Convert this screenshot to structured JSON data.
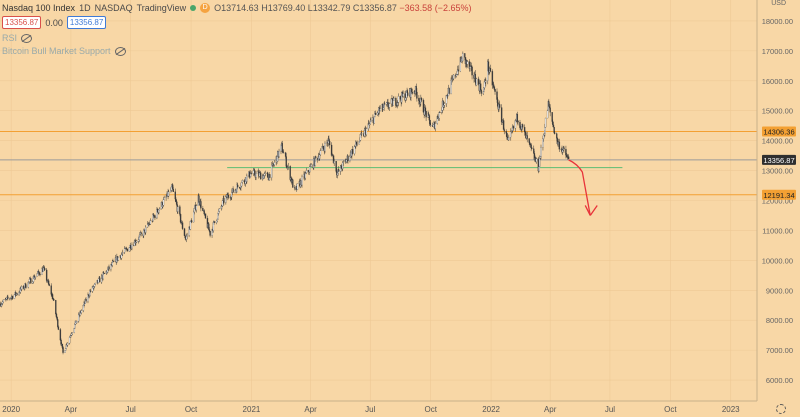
{
  "header": {
    "symbol": "Nasdaq 100 Index",
    "interval": "1D",
    "exchange": "NASDAQ",
    "source": "TradingView",
    "open_label": "O",
    "open": "13714.63",
    "high_label": "H",
    "high": "13769.40",
    "low_label": "L",
    "low": "13342.79",
    "close_label": "C",
    "close": "13356.87",
    "change": "−363.58 (−2.65%)",
    "sell_price": "13356.87",
    "spread": "0.00",
    "buy_price": "13356.87",
    "indicator_1": "RSI",
    "indicator_2": "Bitcoin Bull Market Support",
    "currency": "USD",
    "badge": "D"
  },
  "chart_data": {
    "type": "candlestick",
    "title": "Nasdaq 100 Index · 1D · NASDAQ",
    "xlabel": "",
    "ylabel": "USD",
    "ylim": [
      5300,
      18700
    ],
    "x_range": [
      "2019-12-15",
      "2023-02-10"
    ],
    "x_ticks": [
      {
        "label": "2020",
        "date": "2020-01-01"
      },
      {
        "label": "Apr",
        "date": "2020-04-01"
      },
      {
        "label": "Jul",
        "date": "2020-07-01"
      },
      {
        "label": "Oct",
        "date": "2020-10-01"
      },
      {
        "label": "2021",
        "date": "2021-01-01"
      },
      {
        "label": "Apr",
        "date": "2021-04-01"
      },
      {
        "label": "Jul",
        "date": "2021-07-01"
      },
      {
        "label": "Oct",
        "date": "2021-10-01"
      },
      {
        "label": "2022",
        "date": "2022-01-01"
      },
      {
        "label": "Apr",
        "date": "2022-04-01"
      },
      {
        "label": "Jul",
        "date": "2022-07-01"
      },
      {
        "label": "Oct",
        "date": "2022-10-01"
      },
      {
        "label": "2023",
        "date": "2023-01-01"
      }
    ],
    "y_ticks": [
      {
        "label": "6000.00",
        "value": 6000
      },
      {
        "label": "7000.00",
        "value": 7000
      },
      {
        "label": "8000.00",
        "value": 8000
      },
      {
        "label": "9000.00",
        "value": 9000
      },
      {
        "label": "10000.00",
        "value": 10000
      },
      {
        "label": "11000.00",
        "value": 11000
      },
      {
        "label": "12000.00",
        "value": 12000
      },
      {
        "label": "13000.00",
        "value": 13000
      },
      {
        "label": "14000.00",
        "value": 14000
      },
      {
        "label": "15000.00",
        "value": 15000
      },
      {
        "label": "16000.00",
        "value": 16000
      },
      {
        "label": "17000.00",
        "value": 17000
      },
      {
        "label": "18000.00",
        "value": 18000
      }
    ],
    "price_path": [
      [
        "2019-12-15",
        8550
      ],
      [
        "2020-01-10",
        8900
      ],
      [
        "2020-02-19",
        9720
      ],
      [
        "2020-03-05",
        8700
      ],
      [
        "2020-03-20",
        6900
      ],
      [
        "2020-04-02",
        7600
      ],
      [
        "2020-04-30",
        8950
      ],
      [
        "2020-06-10",
        10050
      ],
      [
        "2020-07-20",
        10900
      ],
      [
        "2020-09-02",
        12400
      ],
      [
        "2020-09-23",
        10700
      ],
      [
        "2020-10-12",
        12100
      ],
      [
        "2020-10-30",
        10900
      ],
      [
        "2020-11-20",
        12000
      ],
      [
        "2020-12-31",
        12900
      ],
      [
        "2021-01-27",
        12800
      ],
      [
        "2021-02-16",
        13800
      ],
      [
        "2021-03-08",
        12300
      ],
      [
        "2021-04-28",
        14000
      ],
      [
        "2021-05-12",
        12900
      ],
      [
        "2021-07-14",
        15000
      ],
      [
        "2021-09-07",
        15700
      ],
      [
        "2021-10-04",
        14400
      ],
      [
        "2021-11-19",
        16800
      ],
      [
        "2021-12-20",
        15600
      ],
      [
        "2021-12-27",
        16500
      ],
      [
        "2022-01-27",
        13900
      ],
      [
        "2022-02-10",
        14800
      ],
      [
        "2022-03-14",
        13100
      ],
      [
        "2022-03-29",
        15200
      ],
      [
        "2022-04-11",
        14000
      ],
      [
        "2022-04-29",
        13357
      ]
    ],
    "horizontal_levels": [
      {
        "name": "resistance",
        "value": 14306.36,
        "label": "14306.36",
        "color": "#f3a033"
      },
      {
        "name": "support",
        "value": 12191.34,
        "label": "12191.34",
        "color": "#f3a033"
      },
      {
        "name": "last-price",
        "value": 13356.87,
        "label": "13356.87",
        "color": "#9a9a9a"
      }
    ],
    "bull_support_line": {
      "from": "2020-11-25",
      "to": "2022-07-20",
      "value": 13100,
      "color": "#5dbd73"
    },
    "projection": {
      "color": "#e8333a",
      "points": [
        [
          "2022-04-29",
          13357
        ],
        [
          "2022-05-20",
          12950
        ],
        [
          "2022-06-01",
          11500
        ]
      ]
    }
  }
}
